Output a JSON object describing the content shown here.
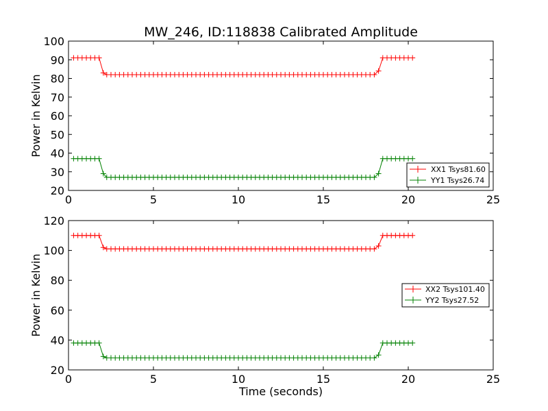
{
  "chart_data": [
    {
      "type": "line",
      "title": "MW_246, ID:118838 Calibrated Amplitude",
      "xlabel": "",
      "ylabel": "Power in Kelvin",
      "xlim": [
        0,
        25
      ],
      "ylim": [
        20,
        100
      ],
      "xticks": [
        0,
        5,
        10,
        15,
        20,
        25
      ],
      "yticks": [
        20,
        30,
        40,
        50,
        60,
        70,
        80,
        90,
        100
      ],
      "grid": false,
      "legend_position": "lower-right",
      "series": [
        {
          "name": "XX1 Tsys81.60",
          "color": "#ff0000",
          "marker": "plus",
          "segments": [
            {
              "x_start": 0.3,
              "x_end": 2.0,
              "step": 0.25,
              "y": 91
            },
            {
              "x_start": 2.25,
              "x_end": 18.0,
              "step": 0.25,
              "y": 82
            },
            {
              "x_start": 18.25,
              "x_end": 18.25,
              "step": 0.25,
              "y": 84
            },
            {
              "x_start": 18.5,
              "x_end": 20.25,
              "step": 0.25,
              "y": 91
            }
          ],
          "transitions": [
            [
              2.05,
              83
            ]
          ]
        },
        {
          "name": "YY1 Tsys26.74",
          "color": "#008000",
          "marker": "plus",
          "segments": [
            {
              "x_start": 0.3,
              "x_end": 2.0,
              "step": 0.25,
              "y": 37
            },
            {
              "x_start": 2.25,
              "x_end": 18.0,
              "step": 0.25,
              "y": 27
            },
            {
              "x_start": 18.25,
              "x_end": 18.25,
              "step": 0.25,
              "y": 29
            },
            {
              "x_start": 18.5,
              "x_end": 20.25,
              "step": 0.25,
              "y": 37
            }
          ],
          "transitions": [
            [
              2.05,
              29
            ]
          ]
        }
      ]
    },
    {
      "type": "line",
      "title": "",
      "xlabel": "Time (seconds)",
      "ylabel": "Power in Kelvin",
      "xlim": [
        0,
        25
      ],
      "ylim": [
        20,
        120
      ],
      "xticks": [
        0,
        5,
        10,
        15,
        20,
        25
      ],
      "yticks": [
        20,
        40,
        60,
        80,
        100,
        120
      ],
      "grid": false,
      "legend_position": "center-right",
      "series": [
        {
          "name": "XX2 Tsys101.40",
          "color": "#ff0000",
          "marker": "plus",
          "segments": [
            {
              "x_start": 0.3,
              "x_end": 2.0,
              "step": 0.25,
              "y": 110
            },
            {
              "x_start": 2.25,
              "x_end": 18.0,
              "step": 0.25,
              "y": 101
            },
            {
              "x_start": 18.25,
              "x_end": 18.25,
              "step": 0.25,
              "y": 103
            },
            {
              "x_start": 18.5,
              "x_end": 20.25,
              "step": 0.25,
              "y": 110
            }
          ],
          "transitions": [
            [
              2.05,
              102
            ]
          ]
        },
        {
          "name": "YY2 Tsys27.52",
          "color": "#008000",
          "marker": "plus",
          "segments": [
            {
              "x_start": 0.3,
              "x_end": 2.0,
              "step": 0.25,
              "y": 38
            },
            {
              "x_start": 2.25,
              "x_end": 18.0,
              "step": 0.25,
              "y": 28
            },
            {
              "x_start": 18.25,
              "x_end": 18.25,
              "step": 0.25,
              "y": 30
            },
            {
              "x_start": 18.5,
              "x_end": 20.25,
              "step": 0.25,
              "y": 38
            }
          ],
          "transitions": [
            [
              2.05,
              29
            ]
          ]
        }
      ]
    }
  ]
}
